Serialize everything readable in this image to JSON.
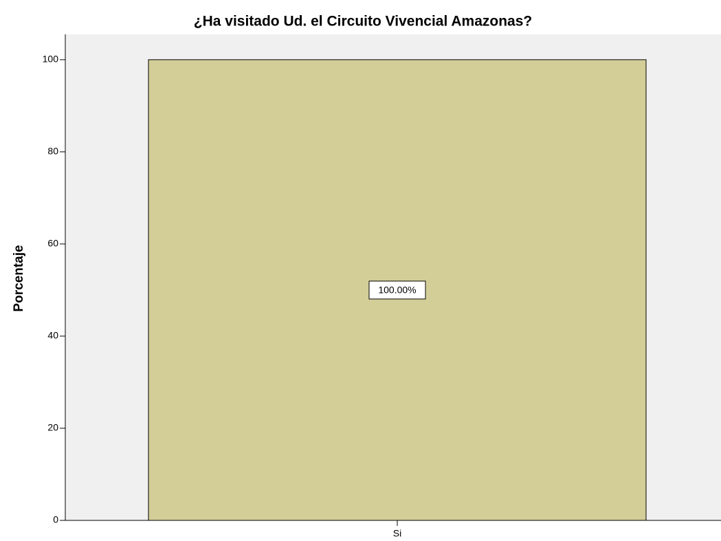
{
  "chart_data": {
    "type": "bar",
    "title": "¿Ha visitado Ud. el Circuito Vivencial Amazonas?",
    "y_label": "Porcentaje",
    "categories": [
      "Si"
    ],
    "values": [
      100
    ],
    "value_labels": [
      "100.00%"
    ],
    "color": "#d3ce98",
    "ylim": [
      0,
      105.5
    ],
    "yticks": [
      0,
      20,
      40,
      60,
      80,
      100
    ],
    "grid": false
  }
}
